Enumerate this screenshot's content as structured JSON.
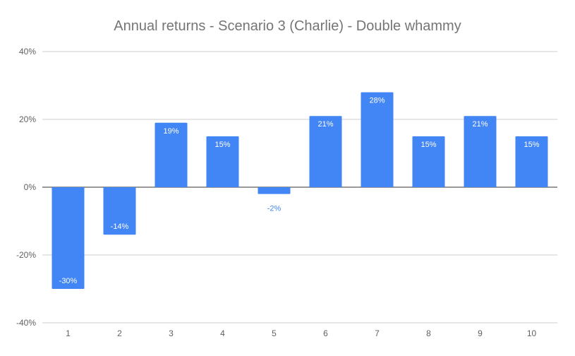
{
  "chart_data": {
    "type": "bar",
    "title": "Annual returns - Scenario 3 (Charlie) - Double whammy",
    "categories": [
      "1",
      "2",
      "3",
      "4",
      "5",
      "6",
      "7",
      "8",
      "9",
      "10"
    ],
    "values": [
      -30,
      -14,
      19,
      15,
      -2,
      21,
      28,
      15,
      21,
      15
    ],
    "data_labels": [
      "-30%",
      "-14%",
      "19%",
      "15%",
      "-2%",
      "21%",
      "28%",
      "15%",
      "21%",
      "15%"
    ],
    "ylim": [
      -40,
      40
    ],
    "yticks": [
      40,
      20,
      0,
      -20,
      -40
    ],
    "ytick_labels": [
      "40%",
      "20%",
      "0%",
      "-20%",
      "-40%"
    ],
    "grid": true,
    "legend": "none",
    "xlabel": "",
    "ylabel": "",
    "colors": {
      "bar": "#4285f4",
      "grid": "#cccccc",
      "zero_line": "#333333",
      "title": "#757575",
      "tick": "#616161"
    }
  }
}
